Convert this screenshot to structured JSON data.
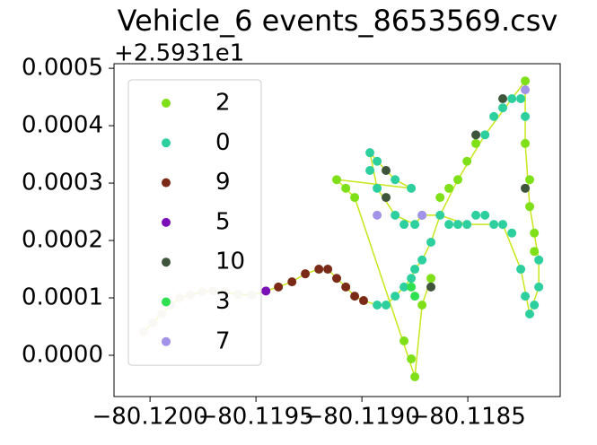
{
  "chart_data": {
    "type": "scatter",
    "title": "Vehicle_6 events_8653569.csv",
    "y_offset_text": "+2.5931e1",
    "xlim": [
      -80.12017,
      -80.118064
    ],
    "ylim": [
      -7.19e-05,
      0.000508
    ],
    "xticks": [
      {
        "value": -80.12,
        "label": "−80.1200"
      },
      {
        "value": -80.1195,
        "label": "−80.1195"
      },
      {
        "value": -80.119,
        "label": "−80.1190"
      },
      {
        "value": -80.1185,
        "label": "−80.1185"
      }
    ],
    "yticks": [
      {
        "value": 0,
        "label": "0.0000"
      },
      {
        "value": 0.0001,
        "label": "0.0001"
      },
      {
        "value": 0.0002,
        "label": "0.0002"
      },
      {
        "value": 0.0003,
        "label": "0.0003"
      },
      {
        "value": 0.0004,
        "label": "0.0004"
      },
      {
        "value": 0.0005,
        "label": "0.0005"
      }
    ],
    "grid": false,
    "legend": "upper left",
    "line": {
      "color": "#c8e619",
      "x": [
        -80.12003,
        -80.119987,
        -80.119945,
        -80.119903,
        -80.11986,
        -80.119809,
        -80.119754,
        -80.119703,
        -80.119648,
        -80.119585,
        -80.119521,
        -80.119453,
        -80.119394,
        -80.11933,
        -80.119267,
        -80.119203,
        -80.119161,
        -80.119119,
        -80.119076,
        -80.119034,
        -80.118992,
        -80.118928,
        -80.118886,
        -80.118843,
        -80.118801,
        -80.118767,
        -80.11875,
        -80.118716,
        -80.118674,
        -80.118631,
        -80.118504,
        -80.118335,
        -80.11825,
        -80.118208,
        -80.118165,
        -80.118165,
        -80.118208,
        -80.118229,
        -80.118229,
        -80.118292,
        -80.118419,
        -80.118547,
        -80.118631,
        -80.118716,
        -80.11875,
        -80.118843,
        -80.118928,
        -80.118962,
        -80.118928,
        -80.118843,
        -80.118767,
        -80.119119,
        -80.119034,
        -80.11875,
        -80.118716,
        -80.118674
      ],
      "y": [
        4.06e-05,
        5.63e-05,
        7.19e-05,
        8.75e-05,
        0.0001,
        0.000105,
        0.00011,
        0.000112,
        0.00011,
        0.000106,
        0.000105,
        0.000112,
        0.000119,
        0.000128,
        0.000142,
        0.00015,
        0.00015,
        0.000134,
        0.000119,
        0.000103,
        9.53e-05,
        8.75e-05,
        8.75e-05,
        0.000103,
        0.000119,
        0.000134,
        0.00015,
        0.000166,
        0.000197,
        0.000244,
        0.000228,
        0.000228,
        0.00015,
        7.19e-05,
        0.000119,
        0.000166,
        0.000259,
        0.000369,
        0.000478,
        0.000447,
        0.000384,
        0.000306,
        0.000244,
        0.000244,
        0.000228,
        0.000244,
        0.000291,
        0.000353,
        0.000338,
        0.000306,
        0.000291,
        0.000306,
        0.000275,
        -3.75e-05,
        8.75e-05,
        0.000134
      ]
    },
    "series": [
      {
        "color": "#e6dccb",
        "x": [
          -80.12003,
          -80.119987,
          -80.119945,
          -80.119903,
          -80.11986,
          -80.119809,
          -80.119754,
          -80.119703,
          -80.119648,
          -80.119585,
          -80.119521
        ],
        "y": [
          4.06e-05,
          5.63e-05,
          7.19e-05,
          8.75e-05,
          0.0001,
          0.000105,
          0.00011,
          0.000112,
          0.00011,
          0.000106,
          0.000105
        ]
      },
      {
        "name": "2",
        "color": "#7fe01a",
        "x": [
          -80.119119,
          -80.119076,
          -80.119034,
          -80.118801,
          -80.118767,
          -80.11875,
          -80.118716,
          -80.118674,
          -80.118631,
          -80.118589,
          -80.118547,
          -80.118504,
          -80.118462,
          -80.118208,
          -80.118186,
          -80.118186,
          -80.118229,
          -80.118229,
          -80.118208
        ],
        "y": [
          0.000306,
          0.000291,
          0.000275,
          2.5e-05,
          -6.3e-06,
          -3.75e-05,
          8.75e-05,
          0.000134,
          0.000275,
          0.000291,
          0.000306,
          0.000338,
          0.000369,
          0.000259,
          0.000213,
          0.000181,
          0.000478,
          0.000369,
          0.000306
        ]
      },
      {
        "name": "0",
        "color": "#2ecf9e",
        "x": [
          -80.118928,
          -80.118886,
          -80.118843,
          -80.118801,
          -80.118767,
          -80.11875,
          -80.118716,
          -80.118674,
          -80.118631,
          -80.118589,
          -80.118547,
          -80.118504,
          -80.118462,
          -80.118419,
          -80.118377,
          -80.118335,
          -80.118292,
          -80.11825,
          -80.118229,
          -80.118208,
          -80.118186,
          -80.118165,
          -80.118165,
          -80.118229,
          -80.11825,
          -80.118292,
          -80.118335,
          -80.118377,
          -80.118419,
          -80.118962,
          -80.118962,
          -80.118928,
          -80.118843,
          -80.118801,
          -80.11875,
          -80.118716,
          -80.118767,
          -80.118843,
          -80.118928
        ],
        "y": [
          8.75e-05,
          8.75e-05,
          0.000103,
          0.000119,
          0.000134,
          0.00015,
          0.000166,
          0.000197,
          0.000244,
          0.000228,
          0.000228,
          0.000228,
          0.000244,
          0.000244,
          0.000228,
          0.000228,
          0.000213,
          0.00015,
          0.000103,
          7.19e-05,
          8.75e-05,
          0.000119,
          0.000166,
          0.000416,
          0.000447,
          0.000447,
          0.000431,
          0.000416,
          0.000384,
          0.000353,
          0.000322,
          0.000291,
          0.000244,
          0.000228,
          0.000228,
          0.000244,
          0.000291,
          0.000306,
          0.000338
        ]
      },
      {
        "name": "9",
        "color": "#7b2a17",
        "x": [
          -80.119394,
          -80.11933,
          -80.119267,
          -80.119203,
          -80.119161,
          -80.119119,
          -80.119076,
          -80.119034,
          -80.118992
        ],
        "y": [
          0.000119,
          0.000128,
          0.000142,
          0.00015,
          0.00015,
          0.000134,
          0.000119,
          0.000103,
          9.53e-05
        ]
      },
      {
        "name": "5",
        "color": "#7a10b8",
        "x": [
          -80.119453
        ],
        "y": [
          0.000112
        ]
      },
      {
        "name": "10",
        "color": "#3e553c",
        "x": [
          -80.118886,
          -80.118886,
          -80.118674,
          -80.118462,
          -80.118335,
          -80.118229
        ],
        "y": [
          0.000275,
          0.000322,
          0.000119,
          0.000384,
          0.000447,
          0.000291
        ]
      },
      {
        "name": "3",
        "color": "#2fe050",
        "x": [
          -80.118767,
          -80.11875
        ],
        "y": [
          0.000119,
          0.000103
        ]
      },
      {
        "name": "7",
        "color": "#a393e8",
        "x": [
          -80.118928,
          -80.118716,
          -80.118229
        ],
        "y": [
          0.000244,
          0.000244,
          0.0004625
        ]
      }
    ]
  }
}
